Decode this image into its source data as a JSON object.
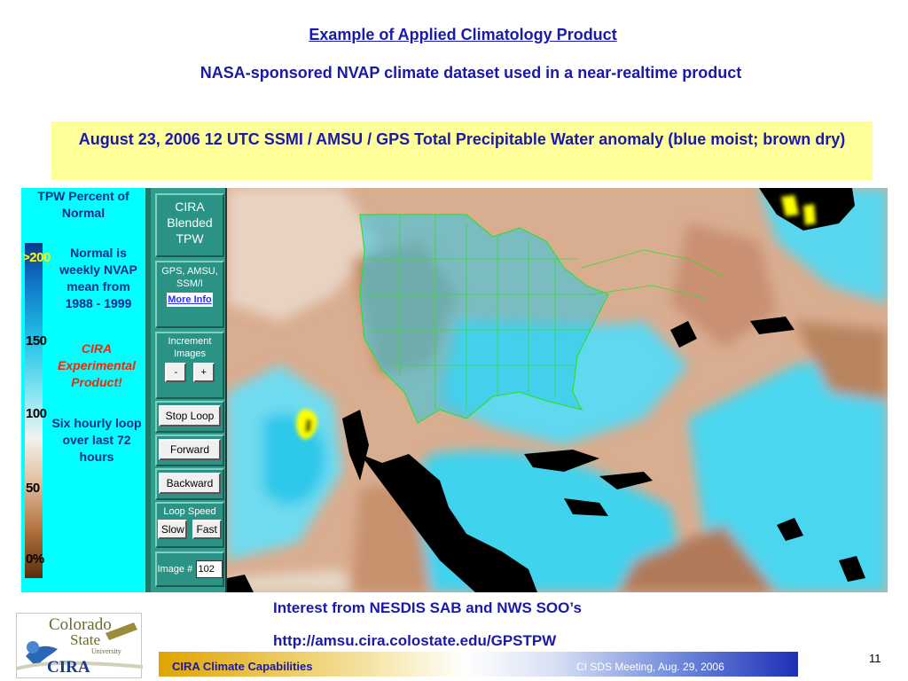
{
  "slide": {
    "title": "Example of Applied Climatology Product",
    "subtitle": "NASA-sponsored NVAP climate dataset used in a near-realtime product",
    "caption": "August 23, 2006 12 UTC SSMI / AMSU / GPS Total Precipitable Water anomaly  (blue moist; brown dry)",
    "footer_line_1": "Interest from NESDIS SAB and NWS SOO’s",
    "footer_line_2": "http://amsu.cira.colostate.edu/GPSTPW",
    "bottom_bar_left": "CIRA Climate Capabilities",
    "bottom_bar_right": "CI SDS Meeting, Aug. 29, 2006",
    "page_number": "11"
  },
  "logo": {
    "colorado": "Colorado",
    "state": "State",
    "university": "University",
    "cira": "CIRA"
  },
  "legend": {
    "heading": "TPW Percent of Normal",
    "normal_note": "Normal is weekly NVAP mean from 1988 - 1999",
    "experimental_note": "CIRA Experimental Product!",
    "loop_note": "Six hourly loop over last 72 hours",
    "ticks": [
      ">200",
      "150",
      "100",
      "50",
      "0%"
    ]
  },
  "controls": {
    "product_title": "CIRA Blended TPW",
    "sources": "GPS, AMSU, SSM/I",
    "more_info": "More Info",
    "increment_label": "Increment Images",
    "minus": "-",
    "plus": "+",
    "stop_loop": "Stop Loop",
    "forward": "Forward",
    "backward": "Backward",
    "loop_speed_label": "Loop Speed",
    "slow": "Slow",
    "fast": "Fast",
    "image_label": "Image #",
    "image_number": "102"
  },
  "colors": {
    "title_blue": "#1a1aa8",
    "caption_bg": "#ffff99",
    "legend_bg": "#00ffff",
    "control_bg": "#2f9c8c",
    "moist": "#3fd3ee",
    "dry": "#c9916b",
    "land": "#000000",
    "borders": "#33dd33"
  }
}
